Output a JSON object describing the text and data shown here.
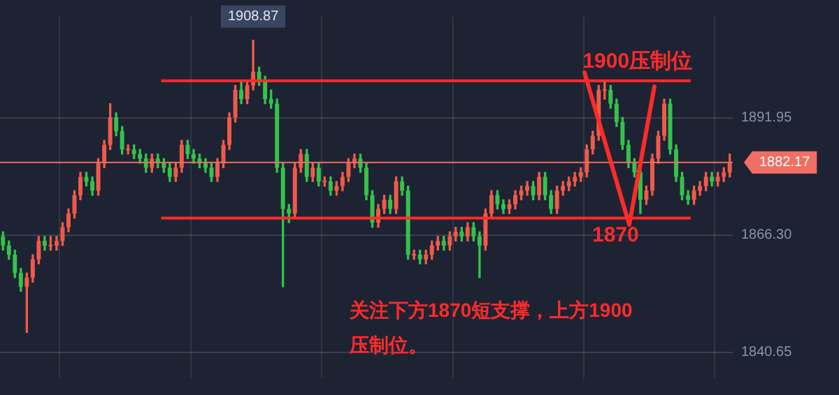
{
  "chart_data": {
    "type": "candlestick",
    "categories": [
      null,
      null,
      null,
      null,
      null,
      null,
      null,
      null,
      null,
      null,
      null,
      null,
      null,
      null,
      null,
      null,
      null,
      null,
      null,
      null,
      null,
      null,
      null,
      null,
      null,
      null,
      null,
      null,
      null,
      null,
      null,
      null,
      null,
      null,
      null,
      null,
      null,
      null,
      null,
      null,
      null,
      null,
      null,
      null,
      null,
      null,
      null,
      null,
      null,
      null,
      null,
      null,
      null,
      null,
      null,
      null,
      null,
      null,
      null,
      null,
      null,
      null,
      null,
      null,
      null,
      null,
      null,
      null,
      null,
      null,
      null,
      null,
      null,
      null,
      null,
      null,
      null,
      null,
      null,
      null,
      null,
      null,
      null,
      null,
      null,
      null,
      null,
      null,
      null,
      null,
      null,
      null,
      null,
      null,
      null,
      null,
      null,
      null,
      null,
      null,
      null,
      null,
      null,
      null,
      null,
      null,
      null,
      null,
      null,
      null,
      null,
      null,
      null,
      null,
      null,
      null,
      null,
      null,
      null,
      null,
      null,
      null,
      null
    ],
    "ohlc": [
      [
        1866,
        1867,
        1863,
        1864
      ],
      [
        1864,
        1865,
        1861,
        1862
      ],
      [
        1862,
        1863,
        1857,
        1858
      ],
      [
        1858,
        1859,
        1854,
        1855
      ],
      [
        1855,
        1858,
        1845,
        1857
      ],
      [
        1857,
        1862,
        1856,
        1861
      ],
      [
        1861,
        1866,
        1860,
        1865
      ],
      [
        1865,
        1866,
        1863,
        1864
      ],
      [
        1864,
        1866,
        1863,
        1864
      ],
      [
        1864,
        1866,
        1863,
        1865
      ],
      [
        1865,
        1869,
        1864,
        1868
      ],
      [
        1868,
        1872,
        1867,
        1871
      ],
      [
        1871,
        1876,
        1870,
        1875
      ],
      [
        1875,
        1880,
        1874,
        1879
      ],
      [
        1879,
        1880,
        1877,
        1878
      ],
      [
        1878,
        1879,
        1875,
        1876
      ],
      [
        1876,
        1883,
        1875,
        1882
      ],
      [
        1882,
        1887,
        1881,
        1886
      ],
      [
        1886,
        1895,
        1885,
        1892
      ],
      [
        1892,
        1893,
        1888,
        1889
      ],
      [
        1889,
        1890,
        1884,
        1885
      ],
      [
        1885,
        1886,
        1884,
        1885
      ],
      [
        1885,
        1886,
        1883,
        1884
      ],
      [
        1884,
        1885,
        1882,
        1883
      ],
      [
        1883,
        1884,
        1880,
        1881
      ],
      [
        1881,
        1884,
        1880,
        1883
      ],
      [
        1883,
        1884,
        1881,
        1882
      ],
      [
        1882,
        1883,
        1880,
        1881
      ],
      [
        1881,
        1882,
        1878,
        1879
      ],
      [
        1879,
        1882,
        1878,
        1881
      ],
      [
        1881,
        1887,
        1880,
        1886
      ],
      [
        1886,
        1887,
        1883,
        1884
      ],
      [
        1884,
        1885,
        1882,
        1883
      ],
      [
        1883,
        1884,
        1881,
        1882
      ],
      [
        1882,
        1883,
        1880,
        1881
      ],
      [
        1881,
        1882,
        1878,
        1879
      ],
      [
        1879,
        1883,
        1878,
        1882
      ],
      [
        1882,
        1887,
        1881,
        1886
      ],
      [
        1886,
        1893,
        1885,
        1892
      ],
      [
        1892,
        1899,
        1891,
        1898
      ],
      [
        1898,
        1900,
        1895,
        1896
      ],
      [
        1896,
        1900,
        1895,
        1899
      ],
      [
        1899,
        1908.87,
        1898,
        1902
      ],
      [
        1902,
        1903,
        1899,
        1900
      ],
      [
        1900,
        1901,
        1895,
        1896
      ],
      [
        1896,
        1898,
        1894,
        1895
      ],
      [
        1895,
        1896,
        1880,
        1881
      ],
      [
        1881,
        1882,
        1855,
        1872
      ],
      [
        1872,
        1873,
        1869,
        1871
      ],
      [
        1871,
        1882,
        1870,
        1881
      ],
      [
        1881,
        1885,
        1880,
        1884
      ],
      [
        1884,
        1885,
        1878,
        1879
      ],
      [
        1879,
        1882,
        1878,
        1881
      ],
      [
        1881,
        1882,
        1877,
        1878
      ],
      [
        1878,
        1879,
        1877,
        1878
      ],
      [
        1878,
        1879,
        1875,
        1876
      ],
      [
        1876,
        1878,
        1875,
        1877
      ],
      [
        1877,
        1880,
        1876,
        1879
      ],
      [
        1879,
        1883,
        1878,
        1882
      ],
      [
        1882,
        1884,
        1881,
        1883
      ],
      [
        1883,
        1884,
        1880,
        1881
      ],
      [
        1881,
        1882,
        1874,
        1875
      ],
      [
        1875,
        1876,
        1868,
        1869
      ],
      [
        1869,
        1873,
        1868,
        1872
      ],
      [
        1872,
        1875,
        1871,
        1874
      ],
      [
        1874,
        1875,
        1871,
        1872
      ],
      [
        1872,
        1879,
        1871,
        1878
      ],
      [
        1878,
        1879,
        1875,
        1876
      ],
      [
        1876,
        1877,
        1861,
        1862
      ],
      [
        1862,
        1863,
        1861,
        1862
      ],
      [
        1862,
        1863,
        1860,
        1861
      ],
      [
        1861,
        1863,
        1860,
        1862
      ],
      [
        1862,
        1865,
        1861,
        1864
      ],
      [
        1864,
        1866,
        1863,
        1865
      ],
      [
        1865,
        1866,
        1863,
        1864
      ],
      [
        1864,
        1867,
        1863,
        1866
      ],
      [
        1866,
        1868,
        1865,
        1867
      ],
      [
        1867,
        1868,
        1865,
        1866
      ],
      [
        1866,
        1869,
        1865,
        1868
      ],
      [
        1868,
        1869,
        1865,
        1866
      ],
      [
        1866,
        1867,
        1857,
        1864
      ],
      [
        1864,
        1872,
        1863,
        1871
      ],
      [
        1871,
        1876,
        1870,
        1875
      ],
      [
        1875,
        1876,
        1872,
        1873
      ],
      [
        1873,
        1874,
        1871,
        1872
      ],
      [
        1872,
        1874,
        1871,
        1873
      ],
      [
        1873,
        1876,
        1872,
        1875
      ],
      [
        1875,
        1877,
        1874,
        1876
      ],
      [
        1876,
        1878,
        1875,
        1877
      ],
      [
        1877,
        1878,
        1874,
        1875
      ],
      [
        1875,
        1880,
        1874,
        1879
      ],
      [
        1879,
        1880,
        1874,
        1875
      ],
      [
        1875,
        1876,
        1871,
        1872
      ],
      [
        1872,
        1877,
        1871,
        1876
      ],
      [
        1876,
        1878,
        1875,
        1877
      ],
      [
        1877,
        1879,
        1876,
        1878
      ],
      [
        1878,
        1880,
        1877,
        1879
      ],
      [
        1879,
        1881,
        1878,
        1880
      ],
      [
        1880,
        1886,
        1879,
        1885
      ],
      [
        1885,
        1889,
        1884,
        1888
      ],
      [
        1888,
        1899,
        1887,
        1898
      ],
      [
        1898,
        1900,
        1896,
        1898
      ],
      [
        1898,
        1899,
        1894,
        1895
      ],
      [
        1895,
        1896,
        1890,
        1891
      ],
      [
        1891,
        1892,
        1885,
        1886
      ],
      [
        1886,
        1887,
        1881,
        1882
      ],
      [
        1882,
        1883,
        1879,
        1880
      ],
      [
        1880,
        1881,
        1871,
        1874
      ],
      [
        1874,
        1877,
        1873,
        1876
      ],
      [
        1876,
        1884,
        1875,
        1883
      ],
      [
        1883,
        1889,
        1882,
        1888
      ],
      [
        1888,
        1896,
        1887,
        1895
      ],
      [
        1895,
        1896,
        1884,
        1885
      ],
      [
        1885,
        1886,
        1878,
        1879
      ],
      [
        1879,
        1880,
        1874,
        1875
      ],
      [
        1875,
        1876,
        1873,
        1874
      ],
      [
        1874,
        1877,
        1873,
        1876
      ],
      [
        1876,
        1878,
        1875,
        1877
      ],
      [
        1877,
        1880,
        1876,
        1879
      ],
      [
        1879,
        1880,
        1877,
        1878
      ],
      [
        1878,
        1880,
        1877,
        1879
      ],
      [
        1879,
        1881,
        1878,
        1880
      ],
      [
        1880,
        1884,
        1879,
        1882.17
      ]
    ],
    "ylim": [
      1835,
      1914
    ],
    "yticks": [
      1891.95,
      {
        "value": 1866.3,
        "label": "1866.30"
      },
      1840.65
    ],
    "tick_labels": "y",
    "grid": true,
    "legend": false,
    "ref_lines": [
      {
        "axis": "y",
        "value": 1900,
        "label": "1900压制位",
        "color": "#ff2b2b"
      },
      {
        "axis": "y",
        "value": 1870,
        "label": "1870",
        "color": "#ff2b2b"
      },
      {
        "axis": "y",
        "value": 1882.17,
        "label": "1882.17",
        "color": "#f06e64"
      }
    ],
    "annotations": [
      {
        "text": "1908.87",
        "y": 1908.87
      },
      "关注下方1870短支撑，上方1900压制位。"
    ]
  }
}
